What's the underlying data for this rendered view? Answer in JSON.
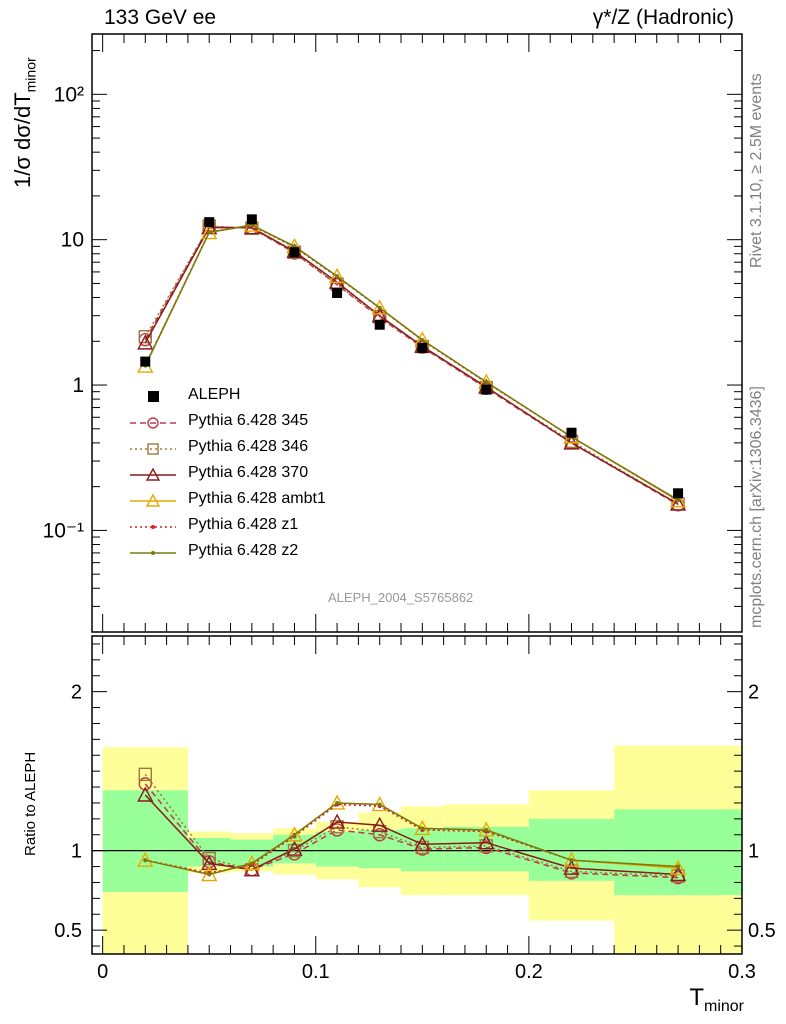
{
  "header": {
    "left": "133 GeV ee",
    "right": "γ*/Z (Hadronic)"
  },
  "side": {
    "rivet": "Rivet 3.1.10, ≥ 2.5M events",
    "mcplots": "mcplots.cern.ch [arXiv:1306.3436]"
  },
  "analysis_id": "ALEPH_2004_S5765862",
  "chart_data": [
    {
      "panel": "main",
      "type": "line",
      "ylabel": "1/σ  dσ/dT",
      "ylabel_sub": "minor",
      "yscale": "log",
      "ylim": [
        0.02,
        260
      ],
      "xlim": [
        -0.005,
        0.3
      ],
      "y_tick_labels": [
        "10⁻¹",
        "1",
        "10",
        "10²"
      ],
      "legend_placement": "lower-left",
      "data": {
        "name": "ALEPH",
        "x": [
          0.02,
          0.05,
          0.07,
          0.09,
          0.11,
          0.13,
          0.15,
          0.18,
          0.22,
          0.27
        ],
        "y": [
          1.45,
          13.2,
          13.8,
          8.2,
          4.3,
          2.6,
          1.8,
          0.93,
          0.47,
          0.18
        ]
      },
      "series": [
        {
          "name": "Pythia 6.428 345",
          "color": "#c0394b",
          "marker": "open-circle",
          "dash": "dashed",
          "y": [
            2.05,
            12.3,
            12.0,
            8.1,
            4.9,
            2.9,
            1.82,
            0.95,
            0.4,
            0.15
          ]
        },
        {
          "name": "Pythia 6.428 346",
          "color": "#a0783c",
          "marker": "open-square",
          "dash": "dotted",
          "y": [
            2.15,
            12.4,
            12.0,
            8.2,
            4.95,
            2.95,
            1.84,
            0.96,
            0.41,
            0.152
          ]
        },
        {
          "name": "Pythia 6.428 370",
          "color": "#8b1a1a",
          "marker": "open-triangle",
          "dash": "solid",
          "y": [
            1.95,
            12.1,
            12.1,
            8.3,
            5.1,
            3.0,
            1.85,
            0.97,
            0.4,
            0.152
          ]
        },
        {
          "name": "Pythia 6.428 ambt1",
          "color": "#e8a800",
          "marker": "open-triangle",
          "dash": "solid",
          "y": [
            1.35,
            11.2,
            12.6,
            9.0,
            5.6,
            3.4,
            2.05,
            1.05,
            0.44,
            0.16
          ]
        },
        {
          "name": "Pythia 6.428 z1",
          "color": "#d62020",
          "marker": "dot",
          "dash": "dotted",
          "y": [
            1.37,
            11.3,
            12.5,
            8.9,
            5.55,
            3.38,
            2.03,
            1.04,
            0.44,
            0.161
          ]
        },
        {
          "name": "Pythia 6.428 z2",
          "color": "#7a7a10",
          "marker": "dot",
          "dash": "solid",
          "y": [
            1.36,
            11.25,
            12.6,
            9.0,
            5.6,
            3.4,
            2.04,
            1.05,
            0.44,
            0.162
          ]
        }
      ]
    },
    {
      "panel": "ratio",
      "type": "line",
      "ylabel": "Ratio to ALEPH",
      "xlabel": "T",
      "xlabel_sub": "minor",
      "ylim": [
        0.35,
        2.35
      ],
      "xlim": [
        -0.005,
        0.3
      ],
      "y_ticks": [
        0.5,
        1,
        2
      ],
      "y_tick_labels": [
        "0.5",
        "1",
        "2"
      ],
      "x_ticks": [
        0,
        0.1,
        0.2,
        0.3
      ],
      "x_tick_labels": [
        "0",
        "0.1",
        "0.2",
        "0.3"
      ],
      "bands": [
        {
          "x0": 0.0,
          "x1": 0.04,
          "stat_lo": 0.74,
          "stat_hi": 1.38,
          "tot_lo": 0.2,
          "tot_hi": 1.65
        },
        {
          "x0": 0.04,
          "x1": 0.06,
          "stat_lo": 0.9,
          "stat_hi": 1.08,
          "tot_lo": 0.86,
          "tot_hi": 1.12
        },
        {
          "x0": 0.06,
          "x1": 0.08,
          "stat_lo": 0.9,
          "stat_hi": 1.07,
          "tot_lo": 0.87,
          "tot_hi": 1.11
        },
        {
          "x0": 0.08,
          "x1": 0.1,
          "stat_lo": 0.92,
          "stat_hi": 1.1,
          "tot_lo": 0.85,
          "tot_hi": 1.14
        },
        {
          "x0": 0.1,
          "x1": 0.12,
          "stat_lo": 0.9,
          "stat_hi": 1.12,
          "tot_lo": 0.82,
          "tot_hi": 1.18
        },
        {
          "x0": 0.12,
          "x1": 0.14,
          "stat_lo": 0.89,
          "stat_hi": 1.13,
          "tot_lo": 0.77,
          "tot_hi": 1.24
        },
        {
          "x0": 0.14,
          "x1": 0.16,
          "stat_lo": 0.87,
          "stat_hi": 1.14,
          "tot_lo": 0.72,
          "tot_hi": 1.28
        },
        {
          "x0": 0.16,
          "x1": 0.2,
          "stat_lo": 0.87,
          "stat_hi": 1.15,
          "tot_lo": 0.72,
          "tot_hi": 1.29
        },
        {
          "x0": 0.2,
          "x1": 0.24,
          "stat_lo": 0.81,
          "stat_hi": 1.2,
          "tot_lo": 0.56,
          "tot_hi": 1.38
        },
        {
          "x0": 0.24,
          "x1": 0.3,
          "stat_lo": 0.72,
          "stat_hi": 1.26,
          "tot_lo": 0.2,
          "tot_hi": 1.66
        }
      ],
      "series": [
        {
          "name": "Pythia 6.428 345",
          "y": [
            1.42,
            0.93,
            0.88,
            0.98,
            1.13,
            1.1,
            1.01,
            1.02,
            0.86,
            0.83
          ]
        },
        {
          "name": "Pythia 6.428 346",
          "y": [
            1.48,
            0.95,
            0.88,
            1.0,
            1.15,
            1.12,
            1.02,
            1.03,
            0.87,
            0.84
          ]
        },
        {
          "name": "Pythia 6.428 370",
          "y": [
            1.35,
            0.92,
            0.88,
            1.01,
            1.18,
            1.16,
            1.04,
            1.05,
            0.89,
            0.85
          ]
        },
        {
          "name": "Pythia 6.428 ambt1",
          "y": [
            0.94,
            0.85,
            0.92,
            1.1,
            1.3,
            1.29,
            1.14,
            1.13,
            0.94,
            0.89
          ]
        },
        {
          "name": "Pythia 6.428 z1",
          "y": [
            0.94,
            0.86,
            0.91,
            1.09,
            1.29,
            1.28,
            1.13,
            1.12,
            0.94,
            0.9
          ]
        },
        {
          "name": "Pythia 6.428 z2",
          "y": [
            0.94,
            0.85,
            0.92,
            1.1,
            1.3,
            1.29,
            1.14,
            1.13,
            0.94,
            0.9
          ]
        }
      ]
    }
  ],
  "colors": {
    "band_stat": "#99ff99",
    "band_total": "#ffff99",
    "data_marker": "#000000"
  }
}
